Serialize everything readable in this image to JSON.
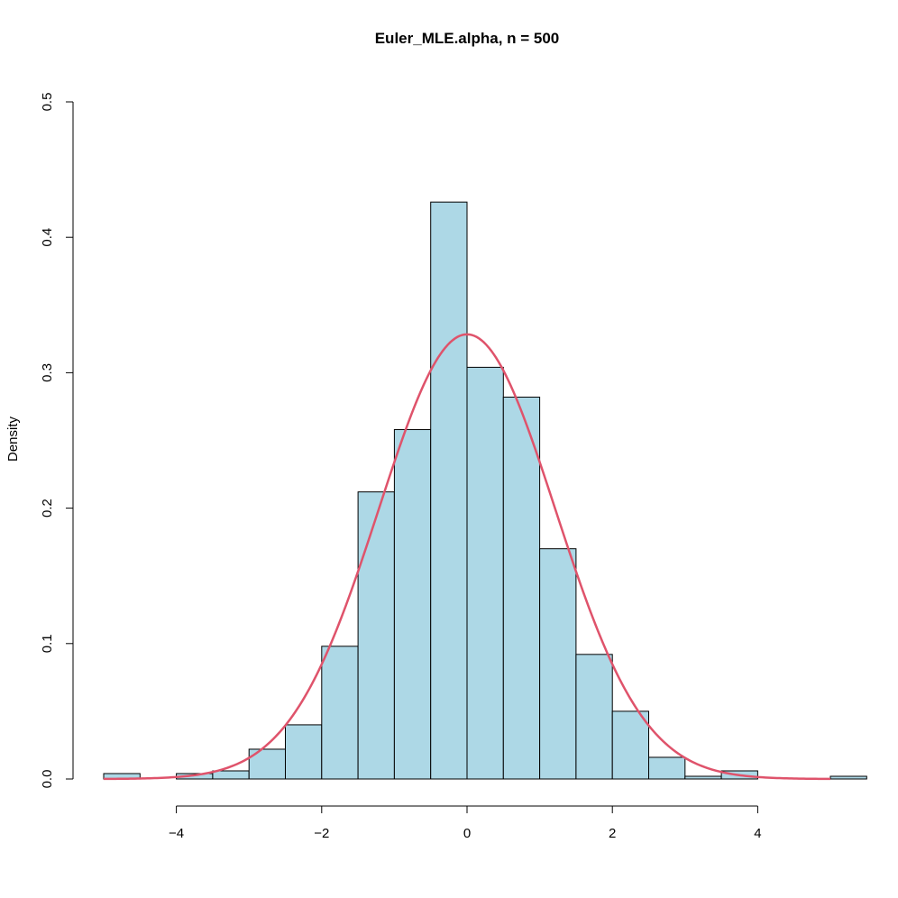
{
  "chart_data": {
    "type": "bar",
    "title": "Euler_MLE.alpha, n = 500",
    "xlabel": "",
    "ylabel": "Density",
    "xlim": [
      -5.25,
      5.4
    ],
    "ylim": [
      0,
      0.5
    ],
    "x_ticks": [
      -4,
      -2,
      0,
      2,
      4
    ],
    "x_tick_labels": [
      "−4",
      "−2",
      "0",
      "2",
      "4"
    ],
    "y_ticks": [
      0,
      0.1,
      0.2,
      0.3,
      0.4,
      0.5
    ],
    "y_tick_labels": [
      "0.0",
      "0.1",
      "0.2",
      "0.3",
      "0.4",
      "0.5"
    ],
    "bins": [
      {
        "x0": -5.0,
        "x1": -4.5,
        "density": 0.004
      },
      {
        "x0": -4.5,
        "x1": -4.0,
        "density": 0.0
      },
      {
        "x0": -4.0,
        "x1": -3.5,
        "density": 0.004
      },
      {
        "x0": -3.5,
        "x1": -3.0,
        "density": 0.006
      },
      {
        "x0": -3.0,
        "x1": -2.5,
        "density": 0.022
      },
      {
        "x0": -2.5,
        "x1": -2.0,
        "density": 0.04
      },
      {
        "x0": -2.0,
        "x1": -1.5,
        "density": 0.098
      },
      {
        "x0": -1.5,
        "x1": -1.0,
        "density": 0.212
      },
      {
        "x0": -1.0,
        "x1": -0.5,
        "density": 0.258
      },
      {
        "x0": -0.5,
        "x1": 0.0,
        "density": 0.426
      },
      {
        "x0": 0.0,
        "x1": 0.5,
        "density": 0.304
      },
      {
        "x0": 0.5,
        "x1": 1.0,
        "density": 0.282
      },
      {
        "x0": 1.0,
        "x1": 1.5,
        "density": 0.17
      },
      {
        "x0": 1.5,
        "x1": 2.0,
        "density": 0.092
      },
      {
        "x0": 2.0,
        "x1": 2.5,
        "density": 0.05
      },
      {
        "x0": 2.5,
        "x1": 3.0,
        "density": 0.016
      },
      {
        "x0": 3.0,
        "x1": 3.5,
        "density": 0.002
      },
      {
        "x0": 3.5,
        "x1": 4.0,
        "density": 0.006
      },
      {
        "x0": 4.0,
        "x1": 4.5,
        "density": 0.0
      },
      {
        "x0": 4.5,
        "x1": 5.0,
        "density": 0.0
      },
      {
        "x0": 5.0,
        "x1": 5.5,
        "density": 0.002
      }
    ],
    "curve": {
      "type": "normal-density",
      "mean": 0,
      "sd": 1.215,
      "x_range": [
        -5.0,
        5.0
      ],
      "color": "#df536b"
    },
    "bar_fill": "#add8e6",
    "bar_stroke": "#000000",
    "grid": false,
    "legend": "none"
  }
}
